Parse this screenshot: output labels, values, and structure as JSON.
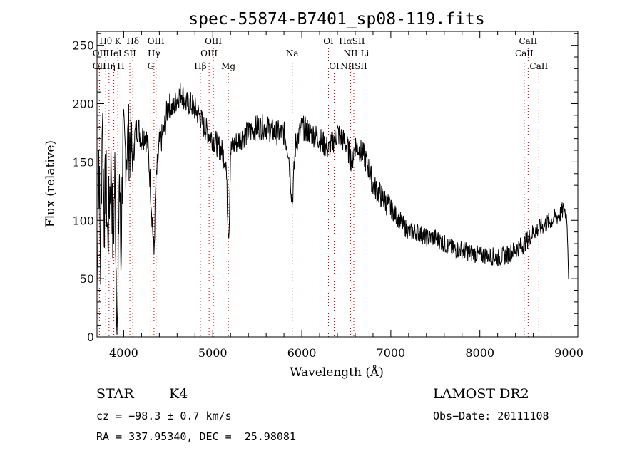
{
  "chart_data": {
    "type": "line",
    "title": "spec-55874-B7401_sp08-119.fits",
    "xlabel": "Wavelength (Å)",
    "ylabel": "Flux (relative)",
    "xlim": [
      3700,
      9100
    ],
    "ylim": [
      0,
      262
    ],
    "xticks": [
      4000,
      5000,
      6000,
      7000,
      8000,
      9000
    ],
    "yticks": [
      0,
      50,
      100,
      150,
      200,
      250
    ],
    "series_anchors": {
      "x": [
        3700,
        3720,
        3740,
        3760,
        3780,
        3800,
        3820,
        3840,
        3860,
        3880,
        3900,
        3920,
        3933,
        3950,
        3968,
        3990,
        4010,
        4040,
        4070,
        4101,
        4130,
        4160,
        4200,
        4240,
        4270,
        4300,
        4320,
        4340,
        4360,
        4400,
        4450,
        4500,
        4550,
        4600,
        4650,
        4700,
        4750,
        4800,
        4850,
        4900,
        4950,
        5000,
        5050,
        5100,
        5150,
        5170,
        5183,
        5200,
        5250,
        5300,
        5400,
        5500,
        5600,
        5700,
        5800,
        5850,
        5893,
        5930,
        6000,
        6100,
        6200,
        6300,
        6400,
        6500,
        6563,
        6600,
        6700,
        6750,
        6800,
        6900,
        7000,
        7100,
        7200,
        7300,
        7400,
        7500,
        7600,
        7700,
        7800,
        7900,
        8000,
        8100,
        8200,
        8300,
        8400,
        8500,
        8600,
        8700,
        8800,
        8900,
        8950,
        8980,
        9000
      ],
      "y": [
        40,
        160,
        60,
        200,
        100,
        140,
        80,
        120,
        150,
        70,
        140,
        40,
        10,
        150,
        60,
        170,
        155,
        165,
        170,
        150,
        175,
        180,
        170,
        175,
        165,
        130,
        100,
        70,
        130,
        165,
        175,
        200,
        195,
        205,
        210,
        200,
        200,
        195,
        190,
        180,
        175,
        170,
        165,
        160,
        150,
        100,
        90,
        160,
        165,
        170,
        175,
        180,
        180,
        175,
        175,
        160,
        115,
        165,
        180,
        175,
        170,
        160,
        175,
        165,
        150,
        165,
        155,
        145,
        130,
        120,
        110,
        100,
        90,
        90,
        85,
        85,
        80,
        75,
        75,
        72,
        70,
        70,
        68,
        70,
        75,
        80,
        90,
        95,
        100,
        105,
        110,
        100,
        45
      ]
    },
    "lines": [
      {
        "label": "Hθ",
        "x": 3798,
        "row": 0
      },
      {
        "label": "K",
        "x": 3934,
        "row": 0
      },
      {
        "label": "Hδ",
        "x": 4102,
        "row": 0
      },
      {
        "label": "OIII",
        "x": 4363,
        "row": 0
      },
      {
        "label": "OIII",
        "x": 5007,
        "row": 0
      },
      {
        "label": "OI",
        "x": 6300,
        "row": 0
      },
      {
        "label": "HαSII",
        "x": 6563,
        "row": 0
      },
      {
        "label": "CaII",
        "x": 8542,
        "row": 0
      },
      {
        "label": "OII",
        "x": 3727,
        "row": 1
      },
      {
        "label": "HeI",
        "x": 3889,
        "row": 1
      },
      {
        "label": "SII",
        "x": 4069,
        "row": 1
      },
      {
        "label": "Hγ",
        "x": 4340,
        "row": 1
      },
      {
        "label": "OIII",
        "x": 4959,
        "row": 1
      },
      {
        "label": "Na",
        "x": 5893,
        "row": 1
      },
      {
        "label": "NII",
        "x": 6548,
        "row": 1
      },
      {
        "label": "Li",
        "x": 6708,
        "row": 1
      },
      {
        "label": "CaII",
        "x": 8498,
        "row": 1
      },
      {
        "label": "OII",
        "x": 3727,
        "row": 2
      },
      {
        "label": "Hη",
        "x": 3835,
        "row": 2
      },
      {
        "label": "H",
        "x": 3968,
        "row": 2
      },
      {
        "label": "G",
        "x": 4304,
        "row": 2
      },
      {
        "label": "Hβ",
        "x": 4861,
        "row": 2
      },
      {
        "label": "Mg",
        "x": 5175,
        "row": 2
      },
      {
        "label": "OI",
        "x": 6364,
        "row": 2
      },
      {
        "label": "NIISII",
        "x": 6584,
        "row": 2
      },
      {
        "label": "CaII",
        "x": 8662,
        "row": 2
      }
    ]
  },
  "info": {
    "class": "STAR",
    "subclass": "K4",
    "survey": "LAMOST DR2",
    "cz": "cz = −98.3 ± 0.7 km/s",
    "obsdate": "Obs−Date: 20111108",
    "radec": "RA = 337.95340, DEC =  25.98081"
  }
}
